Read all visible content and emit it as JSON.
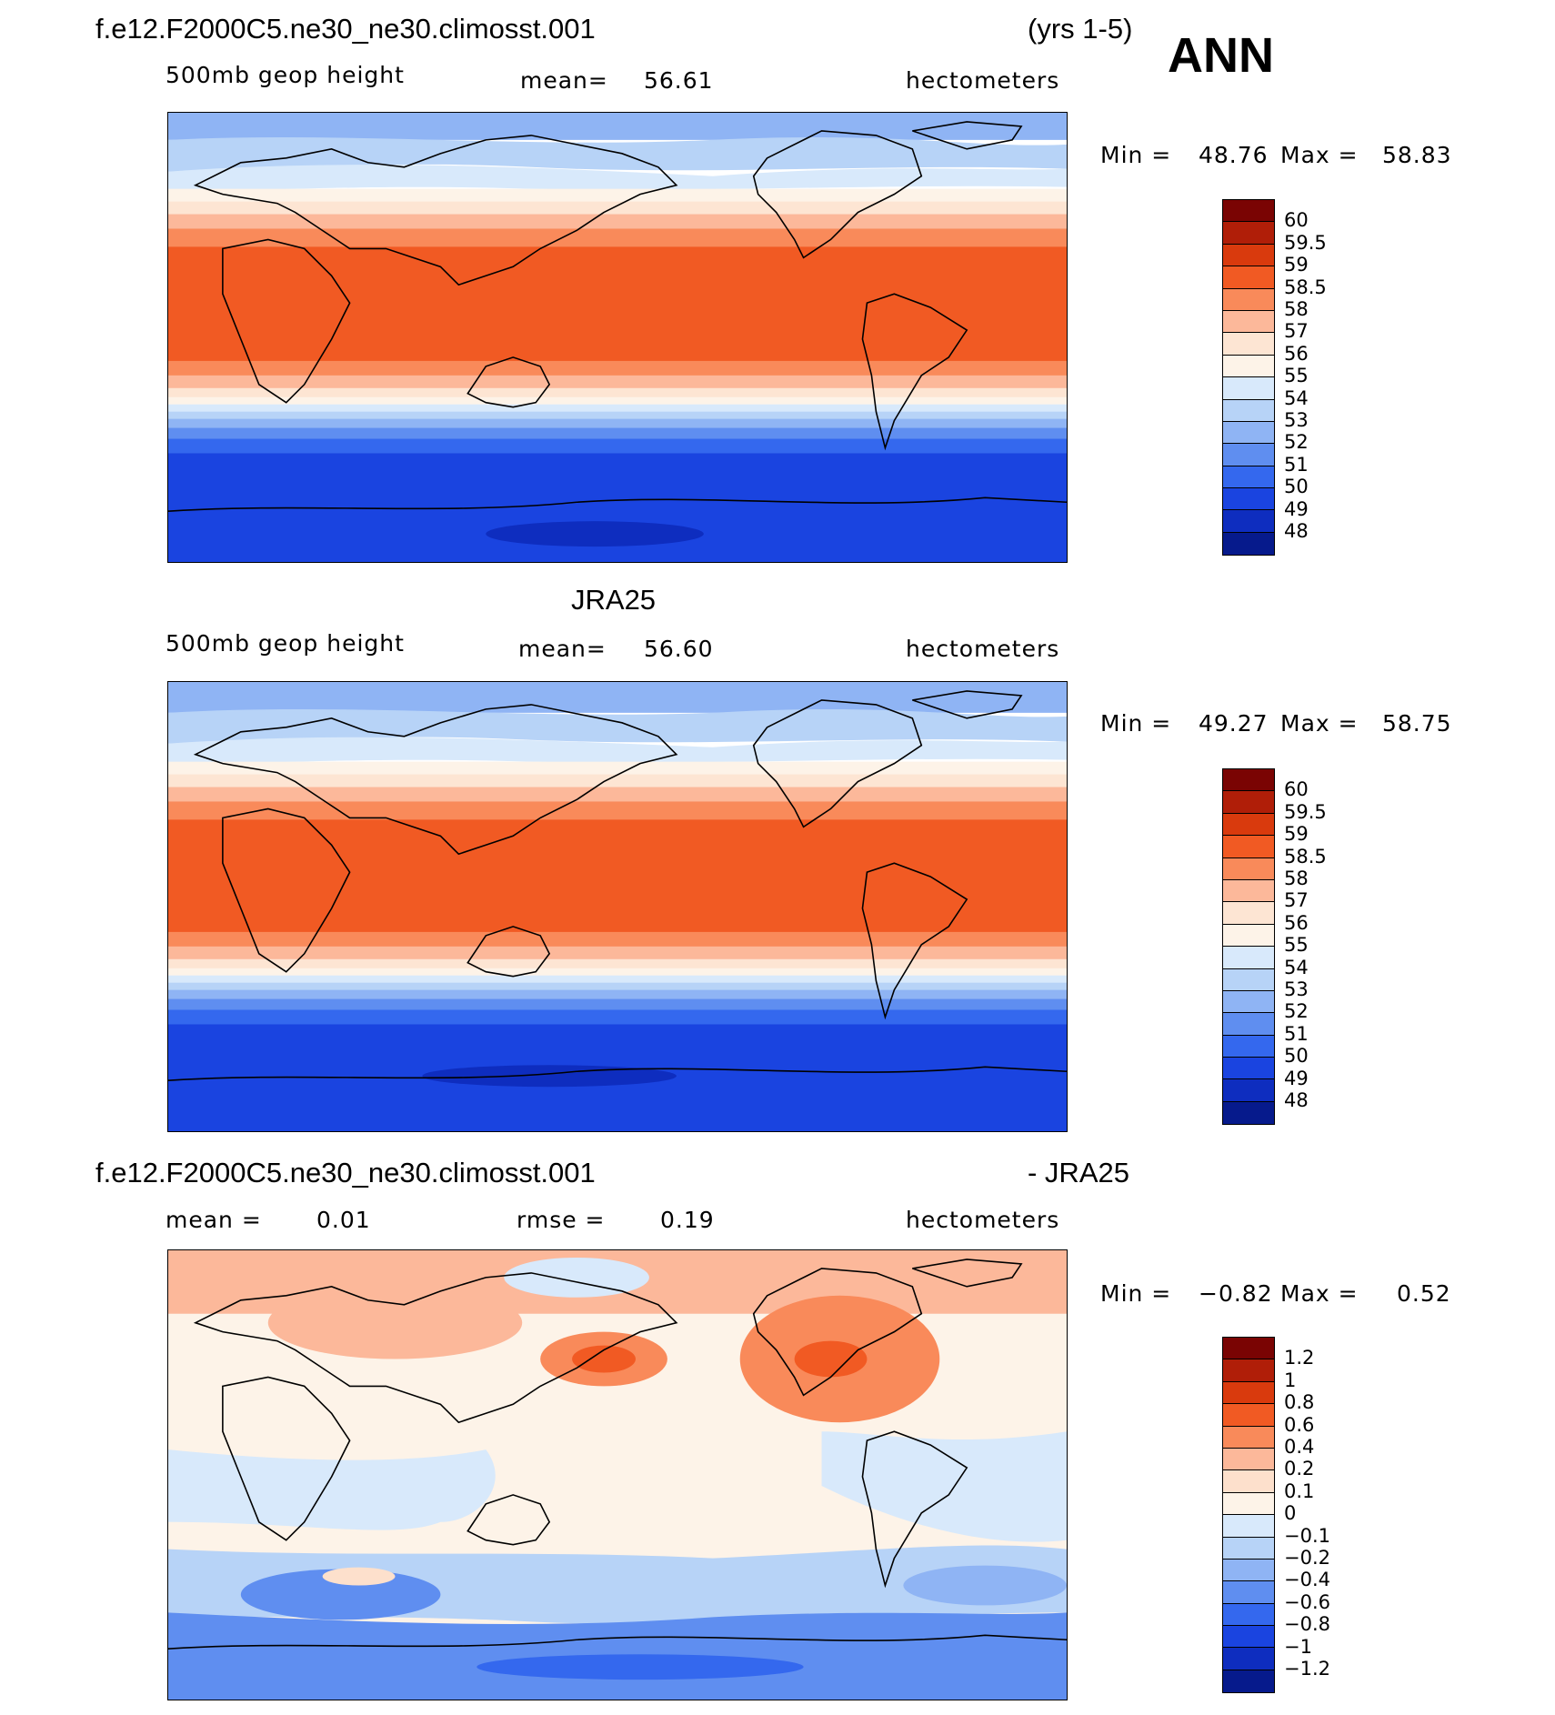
{
  "header": {
    "case_name": "f.e12.F2000C5.ne30_ne30.climosst.001",
    "years": "(yrs 1-5)",
    "season": "ANN"
  },
  "panel1": {
    "variable": "500mb geop height",
    "mean_label": "mean=",
    "mean_value": "56.61",
    "units": "hectometers",
    "min_label": "Min =",
    "min_value": "48.76",
    "max_label": "Max =",
    "max_value": "58.83"
  },
  "panel2": {
    "title": "JRA25",
    "variable": "500mb geop height",
    "mean_label": "mean=",
    "mean_value": "56.60",
    "units": "hectometers",
    "min_label": "Min =",
    "min_value": "49.27",
    "max_label": "Max =",
    "max_value": "58.75"
  },
  "panel3": {
    "title_left": "f.e12.F2000C5.ne30_ne30.climosst.001",
    "title_right": "- JRA25",
    "mean_label": "mean =",
    "mean_value": "0.01",
    "rmse_label": "rmse =",
    "rmse_value": "0.19",
    "units": "hectometers",
    "min_label": "Min =",
    "min_value": "−0.82",
    "max_label": "Max =",
    "max_value": "0.52"
  },
  "legend_height": {
    "colors": [
      "#7a0403",
      "#b01e08",
      "#d93a0d",
      "#f15a23",
      "#f98a5a",
      "#fcb89a",
      "#fde5d3",
      "#fdf3e8",
      "#d8e9fb",
      "#b7d3f7",
      "#8fb4f4",
      "#5f8ef0",
      "#3468ee",
      "#1a44e0",
      "#0e2dbf",
      "#061a8c"
    ],
    "labels": [
      "60",
      "59.5",
      "59",
      "58.5",
      "58",
      "57",
      "56",
      "55",
      "54",
      "53",
      "52",
      "51",
      "50",
      "49",
      "48"
    ]
  },
  "legend_diff": {
    "colors": [
      "#7a0403",
      "#b01e08",
      "#d93a0d",
      "#f15a23",
      "#f98a5a",
      "#fcb89a",
      "#fde0cc",
      "#fdf3e8",
      "#d8e9fb",
      "#b7d3f7",
      "#8fb4f4",
      "#5f8ef0",
      "#3468ee",
      "#1a44e0",
      "#0e2dbf",
      "#061a8c"
    ],
    "labels": [
      "1.2",
      "1",
      "0.8",
      "0.6",
      "0.4",
      "0.2",
      "0.1",
      "0",
      "−0.1",
      "−0.2",
      "−0.4",
      "−0.6",
      "−0.8",
      "−1",
      "−1.2"
    ]
  }
}
